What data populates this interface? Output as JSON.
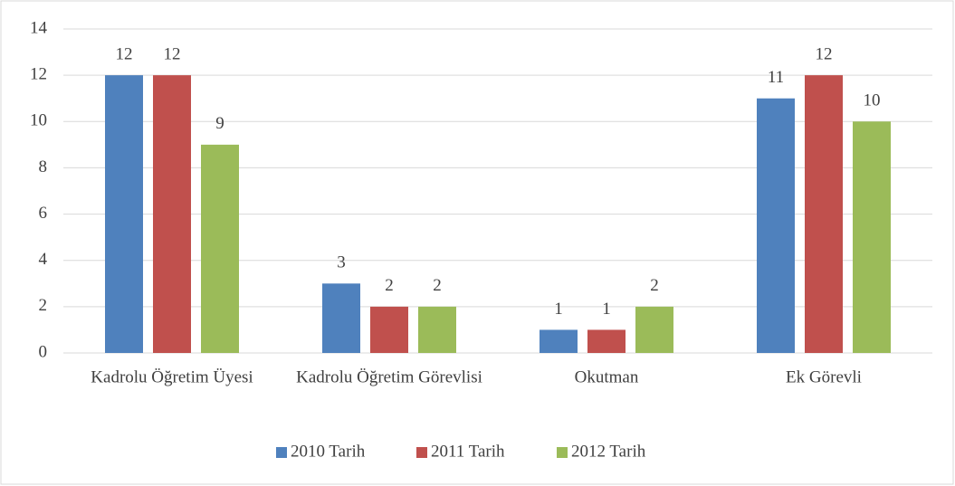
{
  "chart_data": {
    "type": "bar",
    "categories": [
      "Kadrolu Öğretim Üyesi",
      "Kadrolu Öğretim Görevlisi",
      "Okutman",
      "Ek Görevli"
    ],
    "series": [
      {
        "name": "2010 Tarih",
        "color": "#4f81bd",
        "values": [
          12,
          3,
          1,
          11
        ]
      },
      {
        "name": "2011 Tarih",
        "color": "#c0504d",
        "values": [
          12,
          2,
          1,
          12
        ]
      },
      {
        "name": "2012 Tarih",
        "color": "#9bbb59",
        "values": [
          9,
          2,
          2,
          10
        ]
      }
    ],
    "ylim": [
      0,
      14
    ],
    "yticks": [
      0,
      2,
      4,
      6,
      8,
      10,
      12,
      14
    ],
    "grid": true,
    "legend": "bottom"
  }
}
